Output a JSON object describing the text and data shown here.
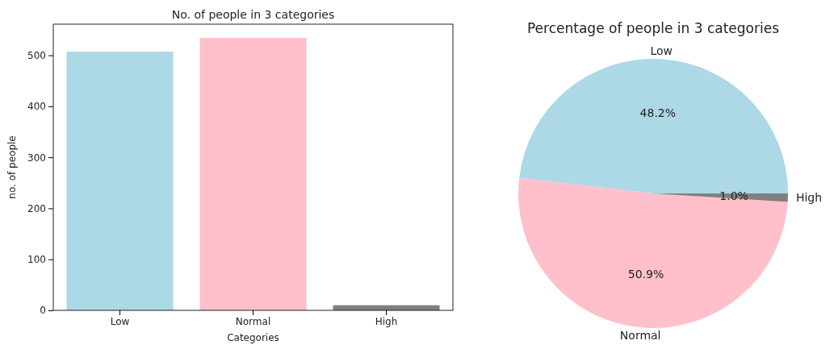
{
  "chart_data": [
    {
      "type": "bar",
      "title": "No. of people in 3 categories",
      "xlabel": "Categories",
      "ylabel": "no. of people",
      "categories": [
        "Low",
        "Normal",
        "High"
      ],
      "values": [
        507,
        534,
        10
      ],
      "colors": [
        "#add8e6",
        "#ffc0cb",
        "#808080"
      ],
      "ylim": [
        0,
        561
      ],
      "yticks": [
        0,
        100,
        200,
        300,
        400,
        500
      ],
      "grid": false
    },
    {
      "type": "pie",
      "title": "Percentage of people in 3 categories",
      "categories": [
        "Low",
        "Normal",
        "High"
      ],
      "values": [
        48.2,
        50.9,
        1.0
      ],
      "colors": [
        "#add8e6",
        "#ffc0cb",
        "#808080"
      ],
      "value_labels": [
        "48.2%",
        "50.9%",
        "1.0%"
      ]
    }
  ]
}
